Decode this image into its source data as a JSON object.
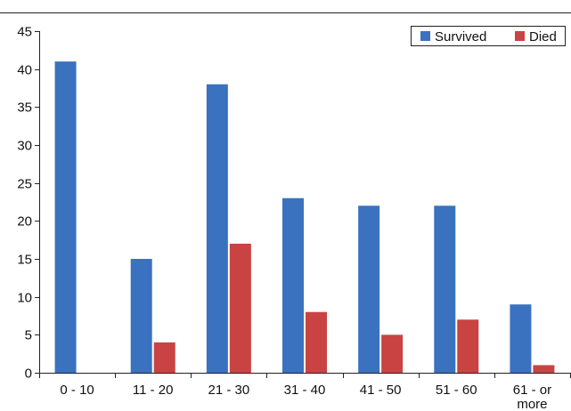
{
  "chart_data": {
    "type": "bar",
    "categories": [
      "0 - 10",
      "11 - 20",
      "21 - 30",
      "31 - 40",
      "41 - 50",
      "51 - 60",
      "61 - or more"
    ],
    "category_lines": [
      [
        "0 - 10"
      ],
      [
        "11 - 20"
      ],
      [
        "21 - 30"
      ],
      [
        "31 - 40"
      ],
      [
        "41 - 50"
      ],
      [
        "51 - 60"
      ],
      [
        "61 - or",
        "more"
      ]
    ],
    "series": [
      {
        "name": "Survived",
        "values": [
          41,
          15,
          38,
          23,
          22,
          22,
          9
        ],
        "color": "#3a72c0"
      },
      {
        "name": "Died",
        "values": [
          0,
          4,
          17,
          8,
          5,
          7,
          1
        ],
        "color": "#c94343"
      }
    ],
    "ylim": [
      0,
      45
    ],
    "yticks": [
      0,
      5,
      10,
      15,
      20,
      25,
      30,
      35,
      40,
      45
    ],
    "legend_position": "top-right",
    "grid": false
  }
}
